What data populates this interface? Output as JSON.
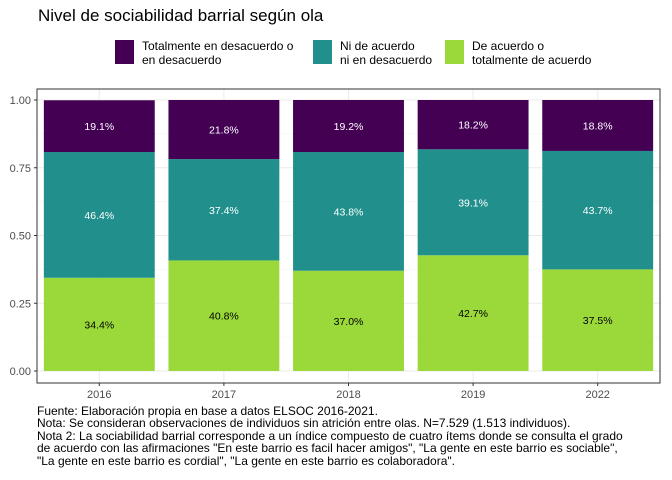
{
  "chart_data": {
    "type": "bar",
    "stacked": true,
    "title": "Nivel de sociabilidad barrial según ola",
    "categories": [
      "2016",
      "2017",
      "2018",
      "2019",
      "2022"
    ],
    "series": [
      {
        "name": "Totalmente en desacuerdo o\nen desacuerdo",
        "color": "#440154",
        "values": [
          0.191,
          0.218,
          0.192,
          0.182,
          0.188
        ],
        "labels": [
          "19.1%",
          "21.8%",
          "19.2%",
          "18.2%",
          "18.8%"
        ],
        "label_color": "#ffffff"
      },
      {
        "name": "Ni de acuerdo\nni en desacuerdo",
        "color": "#21908c",
        "values": [
          0.464,
          0.374,
          0.438,
          0.391,
          0.437
        ],
        "labels": [
          "46.4%",
          "37.4%",
          "43.8%",
          "39.1%",
          "43.7%"
        ],
        "label_color": "#ffffff"
      },
      {
        "name": "De acuerdo o\ntotalmente de acuerdo",
        "color": "#9bd93b",
        "values": [
          0.344,
          0.408,
          0.37,
          0.427,
          0.375
        ],
        "labels": [
          "34.4%",
          "40.8%",
          "37.0%",
          "42.7%",
          "37.5%"
        ],
        "label_color": "#000000"
      }
    ],
    "y_ticks": [
      "0.00",
      "0.25",
      "0.50",
      "0.75",
      "1.00"
    ],
    "ylim": [
      0,
      1
    ],
    "xlabel": "",
    "ylabel": "",
    "legend_position": "top",
    "grid": true
  },
  "captions": [
    "Fuente: Elaboración propia en base a datos ELSOC 2016-2021.",
    "Nota: Se consideran observaciones de individuos sin atrición entre olas. N=7.529 (1.513 individuos).",
    "Nota 2: La sociabilidad barrial corresponde a un índice compuesto de cuatro ítems donde se consulta el grado",
    "de acuerdo con las afirmaciones \"En este barrio es facil hacer amigos\", \"La gente en este barrio es sociable\",",
    "\"La gente en este barrio es cordial\", \"La gente en este barrio es colaboradora\"."
  ]
}
